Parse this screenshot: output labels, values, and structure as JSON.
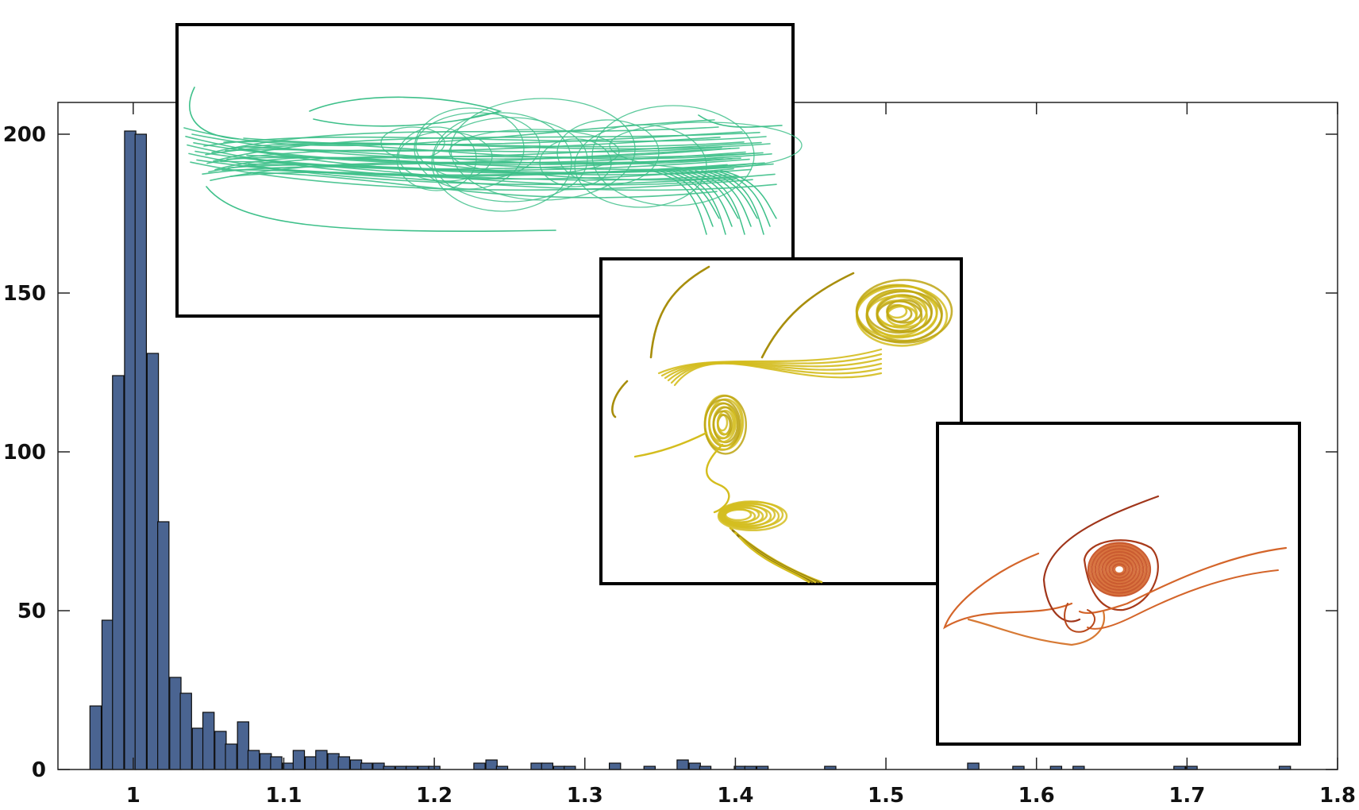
{
  "chart_data": {
    "type": "bar",
    "title": "",
    "xlabel": "",
    "ylabel": "",
    "xlim": [
      0.95,
      1.8
    ],
    "ylim": [
      0,
      210
    ],
    "grid": false,
    "bar_color": "#4a6491",
    "bin_width": 0.0075,
    "x_ticks": [
      1,
      1.1,
      1.2,
      1.3,
      1.4,
      1.5,
      1.6,
      1.7,
      1.8
    ],
    "x_tick_labels": [
      "1",
      "1.1",
      "1.2",
      "1.3",
      "1.4",
      "1.5",
      "1.6",
      "1.7",
      "1.8"
    ],
    "y_ticks": [
      0,
      50,
      100,
      150,
      200
    ],
    "y_tick_labels": [
      "0",
      "50",
      "100",
      "150",
      "200"
    ],
    "series": [
      {
        "x": [
          0.975,
          0.983,
          0.99,
          0.998,
          1.005,
          1.013,
          1.02,
          1.028,
          1.035,
          1.043,
          1.05,
          1.058,
          1.065,
          1.073,
          1.08,
          1.088,
          1.095,
          1.103,
          1.11,
          1.118,
          1.125,
          1.133,
          1.14,
          1.148,
          1.155,
          1.163,
          1.17,
          1.178,
          1.185,
          1.193,
          1.2,
          1.23,
          1.238,
          1.245,
          1.268,
          1.275,
          1.283,
          1.29,
          1.32,
          1.343,
          1.365,
          1.373,
          1.38,
          1.403,
          1.41,
          1.418,
          1.463,
          1.558,
          1.588,
          1.613,
          1.628,
          1.695,
          1.703,
          1.765
        ],
        "values": [
          20,
          47,
          124,
          201,
          200,
          131,
          78,
          29,
          24,
          13,
          18,
          12,
          8,
          15,
          6,
          5,
          4,
          2,
          6,
          4,
          6,
          5,
          4,
          3,
          2,
          2,
          1,
          1,
          1,
          1,
          1,
          2,
          3,
          1,
          2,
          2,
          1,
          1,
          2,
          1,
          3,
          2,
          1,
          1,
          1,
          1,
          1,
          2,
          1,
          1,
          1,
          1,
          1,
          1
        ]
      }
    ],
    "insets": [
      {
        "name": "green-streamlines",
        "color": "#3ec08a"
      },
      {
        "name": "yellow-streamlines",
        "color": "#d4bd1e"
      },
      {
        "name": "orange-streamlines",
        "color": "#d4652a"
      }
    ]
  }
}
